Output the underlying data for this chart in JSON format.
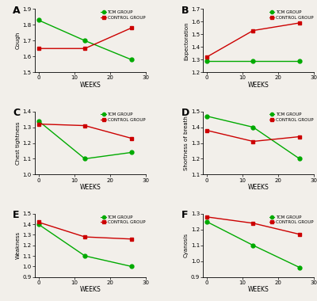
{
  "weeks": [
    0,
    13,
    26
  ],
  "panels": [
    {
      "label": "A",
      "ylabel": "Cough",
      "ylim": [
        1.5,
        1.9
      ],
      "yticks": [
        1.5,
        1.6,
        1.7,
        1.8,
        1.9
      ],
      "tcm": [
        1.83,
        1.7,
        1.58
      ],
      "ctrl": [
        1.65,
        1.65,
        1.78
      ]
    },
    {
      "label": "B",
      "ylabel": "Expectoration",
      "ylim": [
        1.2,
        1.7
      ],
      "yticks": [
        1.2,
        1.3,
        1.4,
        1.5,
        1.6,
        1.7
      ],
      "tcm": [
        1.29,
        1.29,
        1.29
      ],
      "ctrl": [
        1.32,
        1.53,
        1.59
      ]
    },
    {
      "label": "C",
      "ylabel": "Chest tightness",
      "ylim": [
        1.0,
        1.4
      ],
      "yticks": [
        1.0,
        1.1,
        1.2,
        1.3,
        1.4
      ],
      "tcm": [
        1.34,
        1.1,
        1.14
      ],
      "ctrl": [
        1.32,
        1.31,
        1.23
      ]
    },
    {
      "label": "D",
      "ylabel": "Shortness of breath",
      "ylim": [
        1.1,
        1.5
      ],
      "yticks": [
        1.1,
        1.2,
        1.3,
        1.4,
        1.5
      ],
      "tcm": [
        1.47,
        1.4,
        1.2
      ],
      "ctrl": [
        1.38,
        1.31,
        1.34
      ]
    },
    {
      "label": "E",
      "ylabel": "Weakness",
      "ylim": [
        0.9,
        1.5
      ],
      "yticks": [
        0.9,
        1.0,
        1.1,
        1.2,
        1.3,
        1.4,
        1.5
      ],
      "tcm": [
        1.4,
        1.1,
        1.0
      ],
      "ctrl": [
        1.42,
        1.28,
        1.26
      ]
    },
    {
      "label": "F",
      "ylabel": "Cyanosis",
      "ylim": [
        0.9,
        1.3
      ],
      "yticks": [
        0.9,
        1.0,
        1.1,
        1.2,
        1.3
      ],
      "tcm": [
        1.25,
        1.1,
        0.96
      ],
      "ctrl": [
        1.28,
        1.24,
        1.17
      ]
    }
  ],
  "tcm_color": "#00AA00",
  "ctrl_color": "#CC0000",
  "xlabel": "WEEKS",
  "xticks": [
    0,
    10,
    20,
    30
  ],
  "xlim": [
    -1,
    30
  ]
}
